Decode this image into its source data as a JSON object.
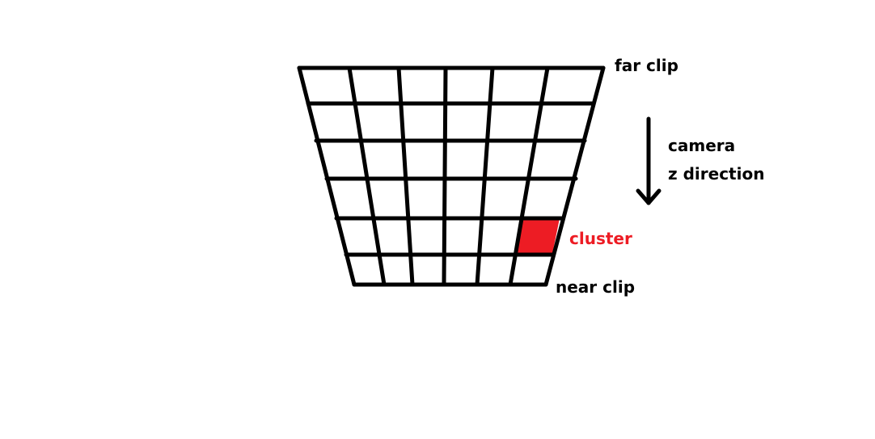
{
  "labels": {
    "far_clip": "far clip",
    "near_clip": "near clip",
    "camera_line1": "camera",
    "camera_line2": "z direction",
    "cluster": "cluster"
  },
  "grid": {
    "columns": 6,
    "rows": 6,
    "highlighted_cell": {
      "row": 5,
      "column": 6
    }
  },
  "colors": {
    "line": "#000000",
    "cluster": "#ed1c24",
    "cluster_label": "#ed1c24",
    "background": "#ffffff"
  },
  "icons": {
    "direction_arrow": "down-arrow-icon"
  }
}
